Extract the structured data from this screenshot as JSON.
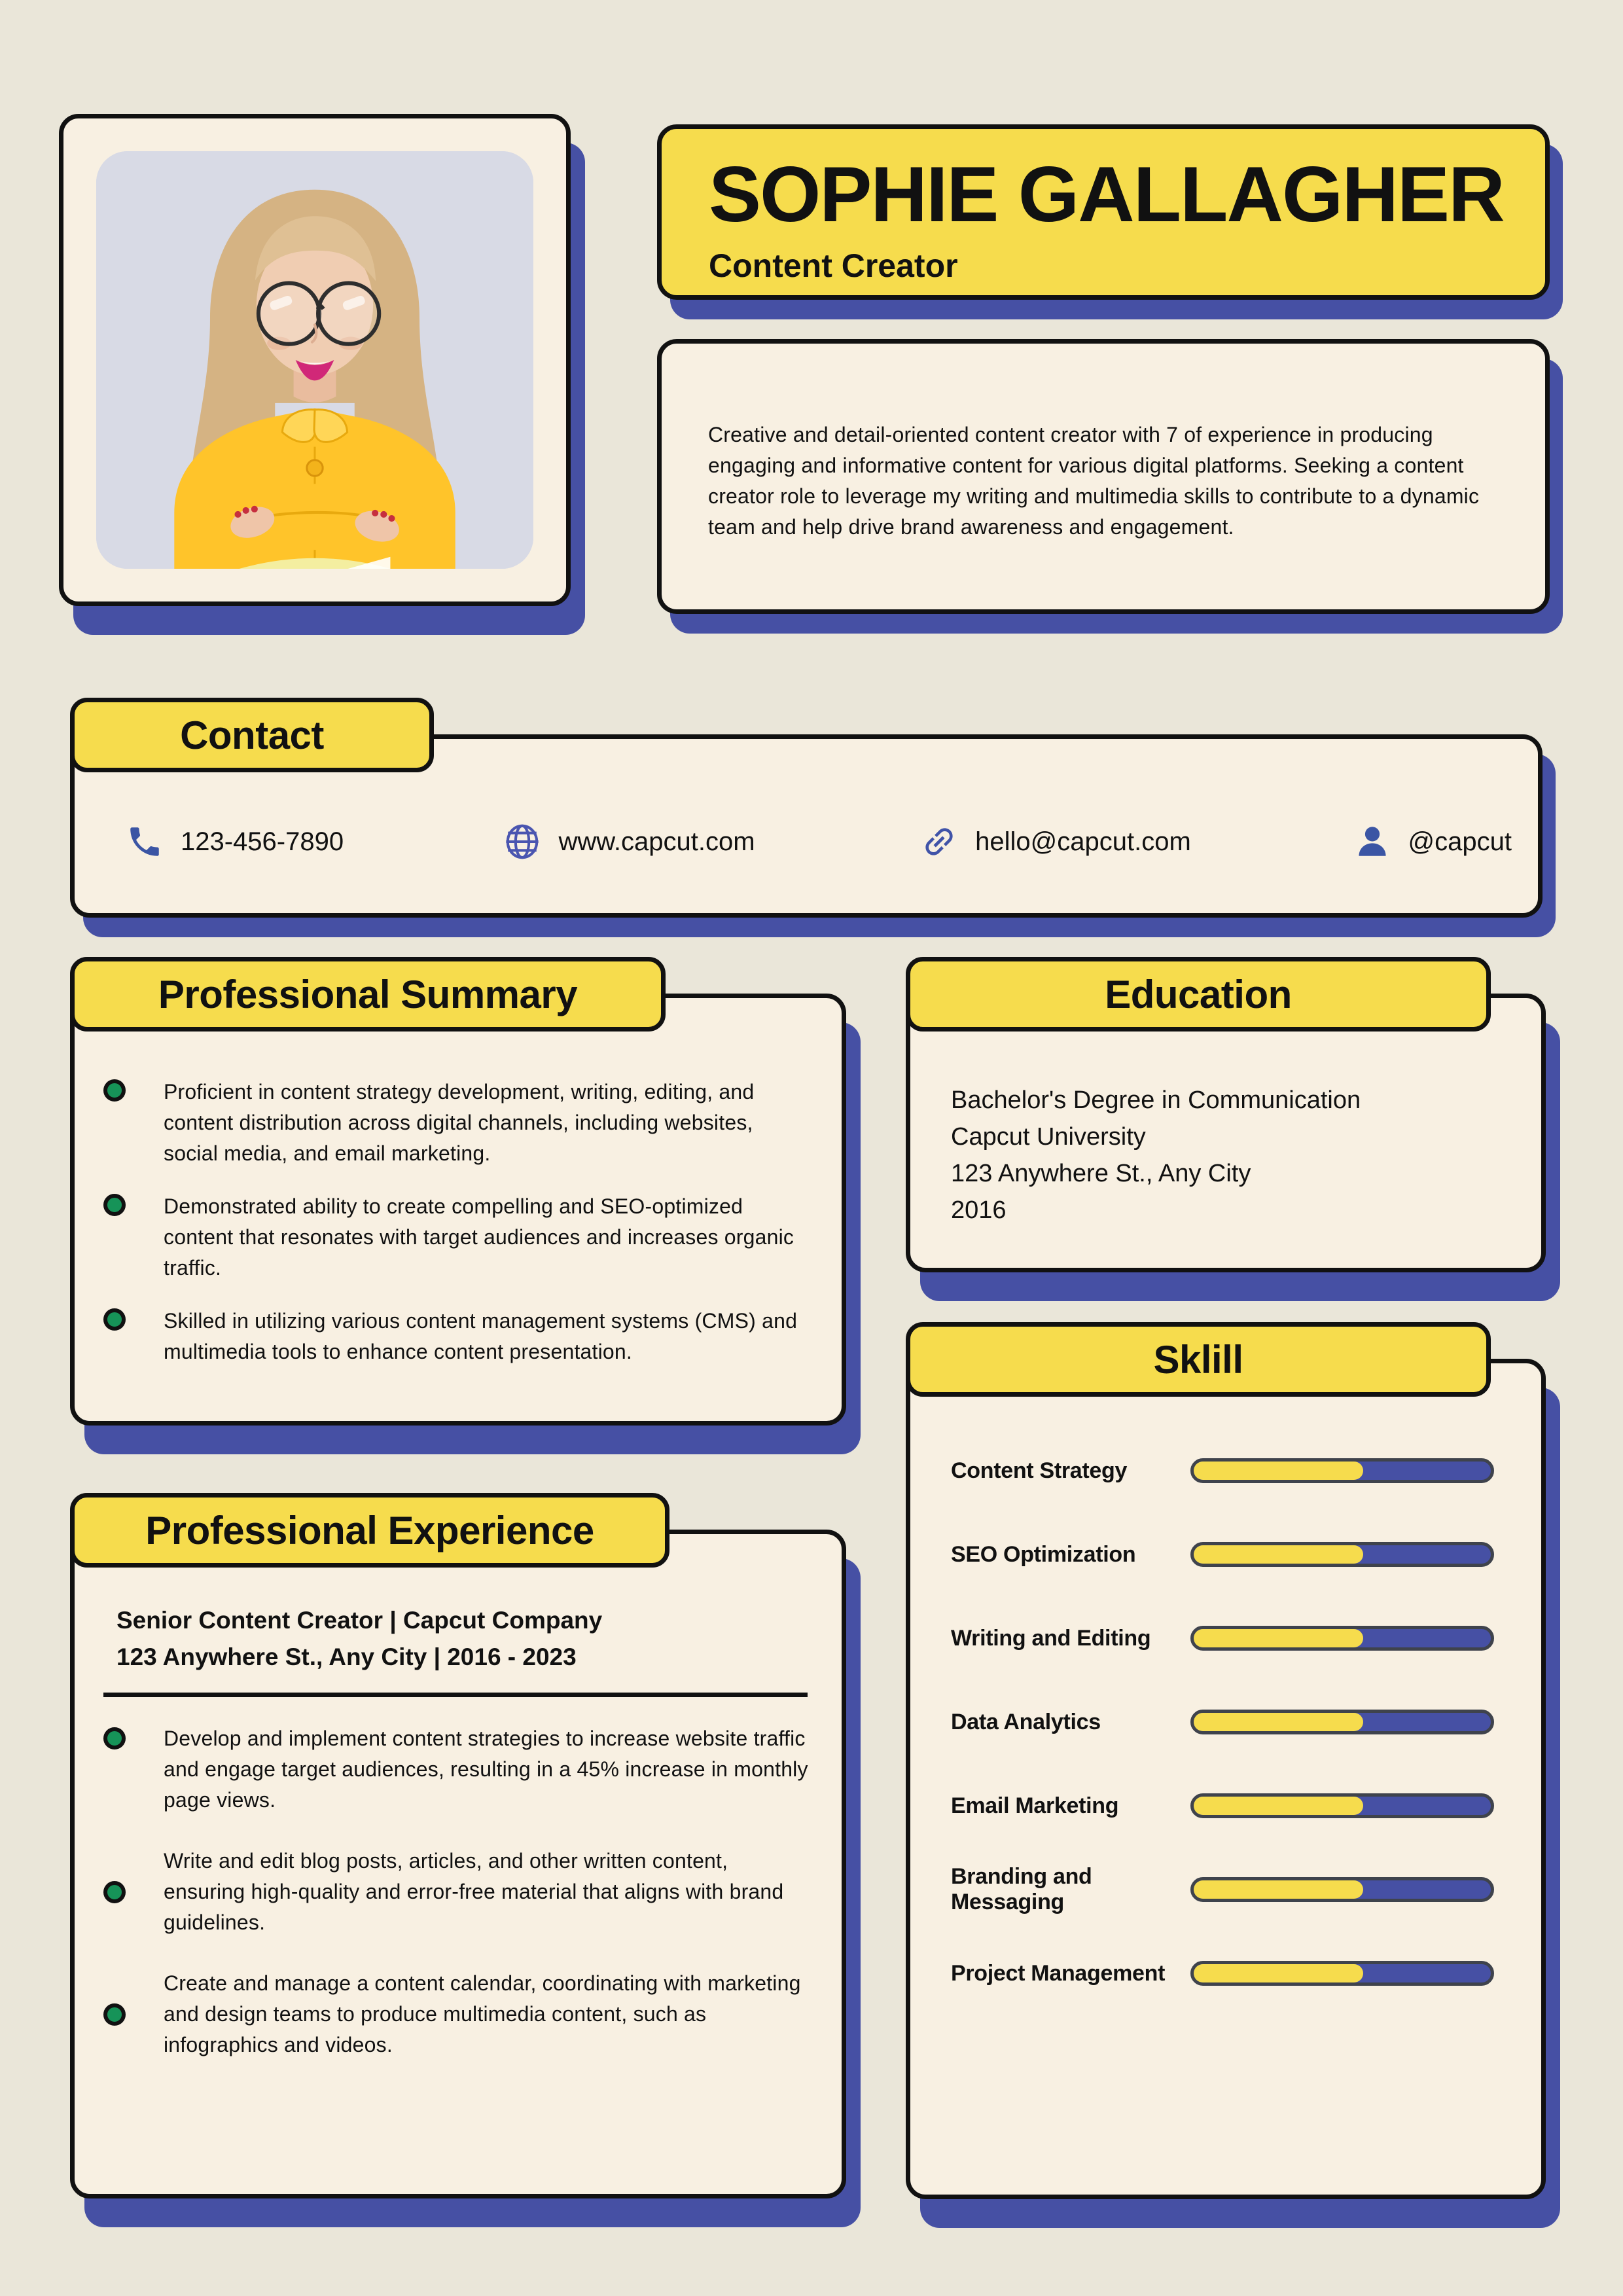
{
  "header": {
    "name": "SOPHIE GALLAGHER",
    "title": "Content Creator"
  },
  "summary": {
    "text": "Creative and detail-oriented content creator with 7 of experience in producing engaging and informative content for various digital platforms. Seeking a content creator role to leverage my writing and multimedia skills to contribute to a dynamic team and help drive brand awareness and engagement."
  },
  "contact": {
    "heading": "Contact",
    "items": [
      {
        "icon": "phone-icon",
        "label": "123-456-7890"
      },
      {
        "icon": "globe-icon",
        "label": "www.capcut.com"
      },
      {
        "icon": "link-icon",
        "label": "hello@capcut.com"
      },
      {
        "icon": "person-icon",
        "label": "@capcut"
      }
    ]
  },
  "professional_summary": {
    "heading": "Professional Summary",
    "bullets": [
      {
        "text": "Proficient in content strategy development, writing, editing, and content distribution across digital channels, including websites, social media, and email marketing."
      },
      {
        "text": "Demonstrated ability to create compelling and SEO-optimized content that resonates with target audiences and increases organic traffic."
      },
      {
        "text": "Skilled in utilizing various content management systems (CMS) and multimedia tools to enhance content presentation."
      }
    ]
  },
  "education": {
    "heading": "Education",
    "lines": [
      "Bachelor's Degree in Communication",
      "Capcut University",
      "123 Anywhere St., Any City",
      "2016"
    ]
  },
  "skills": {
    "heading": "Sklill",
    "items": [
      {
        "label": "Content Strategy",
        "percent": 57
      },
      {
        "label": "SEO Optimization",
        "percent": 57
      },
      {
        "label": "Writing and Editing",
        "percent": 57
      },
      {
        "label": "Data Analytics",
        "percent": 57
      },
      {
        "label": "Email Marketing",
        "percent": 57
      },
      {
        "label": "Branding and Messaging",
        "percent": 57
      },
      {
        "label": "Project Management",
        "percent": 57
      }
    ]
  },
  "experience": {
    "heading": "Professional Experience",
    "role_line": "Senior Content Creator | Capcut Company",
    "location_line": "123 Anywhere St., Any City | 2016 - 2023",
    "bullets": [
      {
        "text": "Develop and implement content strategies to increase website traffic and engage target audiences, resulting in a 45% increase in monthly page views."
      },
      {
        "text": "Write and edit blog posts, articles, and other written content, ensuring high-quality and error-free material that aligns with brand guidelines."
      },
      {
        "text": "Create and manage a content calendar, coordinating with marketing and design teams to produce multimedia content, such as infographics and videos."
      }
    ]
  },
  "colors": {
    "page_background": "#EAE6D9",
    "card_cream": "#F8F0E2",
    "accent_yellow": "#F6DC4D",
    "accent_blue": "#4650A4",
    "bullet_green": "#169358",
    "icon_blue": "#3B55A4",
    "text": "#111111"
  }
}
